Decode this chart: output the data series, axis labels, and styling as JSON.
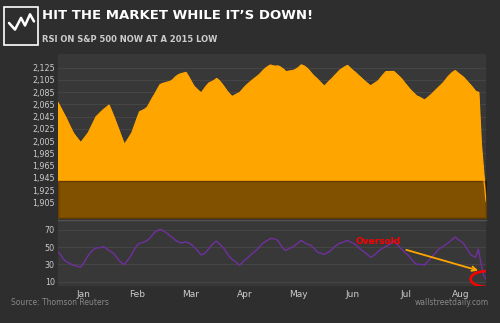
{
  "title": "HIT THE MARKET WHILE IT’S DOWN!",
  "subtitle": "RSI ON S&P 500 NOW AT A 2015 LOW",
  "source_left": "Source: Thomson Reuters",
  "source_right": "wallstreetdaily.com",
  "bg_color": "#2e2e2e",
  "header_bg": "#1c1c1c",
  "plot_bg": "#383838",
  "grid_color": "#505050",
  "sp500_color": "#FFA500",
  "rsi_color": "#7030A0",
  "sp500_ylim": [
    1880,
    2148
  ],
  "sp500_yticks": [
    1905,
    1925,
    1945,
    1965,
    1985,
    2005,
    2025,
    2045,
    2065,
    2085,
    2105,
    2125
  ],
  "rsi_ylim": [
    5,
    82
  ],
  "rsi_yticks": [
    10,
    30,
    50,
    70
  ],
  "month_labels": [
    "Jan",
    "Feb",
    "Mar",
    "Apr",
    "May",
    "Jun",
    "Jul",
    "Aug"
  ],
  "oversold_label": "Oversold",
  "oversold_color": "#FF0000",
  "arrow_color": "#FFA500",
  "separator_color": "#555555"
}
